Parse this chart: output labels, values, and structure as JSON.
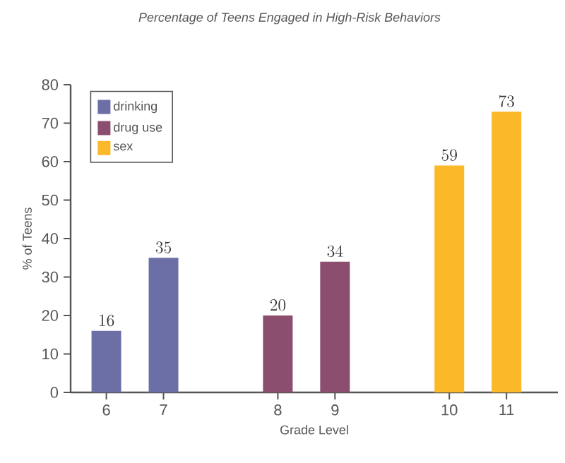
{
  "chart_data": {
    "type": "bar",
    "title": "Percentage of Teens Engaged in High-Risk Behaviors",
    "xlabel": "Grade Level",
    "ylabel": "% of Teens",
    "categories": [
      "6",
      "7",
      null,
      "8",
      "9",
      null,
      "10",
      "11"
    ],
    "series": [
      {
        "name": "drinking",
        "color": "#6b6fa6",
        "values": [
          16,
          35,
          null,
          null,
          null,
          null,
          null,
          null
        ]
      },
      {
        "name": "drug use",
        "color": "#8c4e6e",
        "values": [
          null,
          null,
          null,
          20,
          34,
          null,
          null,
          null
        ]
      },
      {
        "name": "sex",
        "color": "#fbb828",
        "values": [
          null,
          null,
          null,
          null,
          null,
          null,
          59,
          73
        ]
      }
    ],
    "ylim": [
      0,
      80
    ],
    "yticks": [
      0,
      10,
      20,
      30,
      40,
      50,
      60,
      70,
      80
    ],
    "data_labels": true,
    "legend": "top left",
    "grid": false
  }
}
